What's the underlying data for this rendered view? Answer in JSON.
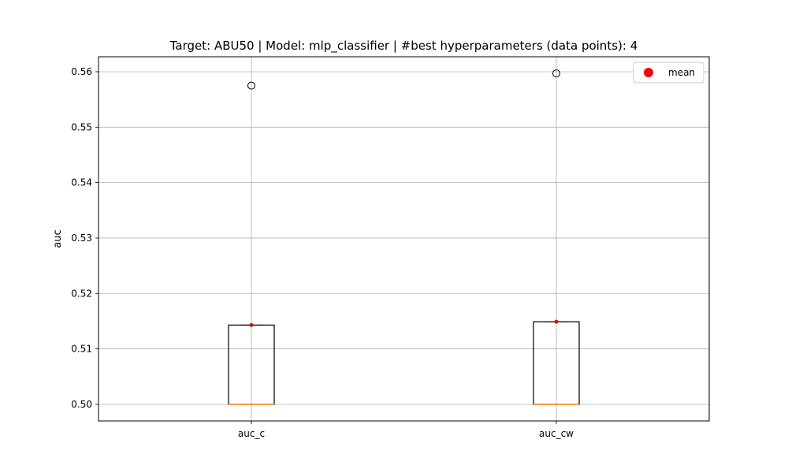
{
  "chart_data": {
    "type": "box",
    "title": "Target: ABU50 | Model: mlp_classifier | #best hyperparameters (data points): 4",
    "xlabel": "",
    "ylabel": "auc",
    "ylim": [
      0.497,
      0.5627
    ],
    "yticks": [
      0.5,
      0.51,
      0.52,
      0.53,
      0.54,
      0.55,
      0.56
    ],
    "ytick_labels": [
      "0.50",
      "0.51",
      "0.52",
      "0.53",
      "0.54",
      "0.55",
      "0.56"
    ],
    "grid": true,
    "legend": {
      "placement": "top-right",
      "entries": [
        {
          "label": "mean",
          "color": "#ff0000",
          "marker": "circle"
        }
      ]
    },
    "colors": {
      "box": "#000000",
      "median": "#ff7f0e",
      "mean": "#ff0000",
      "grid": "#b0b0b0"
    },
    "categories": [
      "auc_c",
      "auc_cw"
    ],
    "boxes": [
      {
        "name": "auc_c",
        "whisker_low": 0.5,
        "q1": 0.5,
        "median": 0.5,
        "q3": 0.5143,
        "whisker_high": 0.5143,
        "mean": 0.5143,
        "outliers": [
          0.5575
        ]
      },
      {
        "name": "auc_cw",
        "whisker_low": 0.5,
        "q1": 0.5,
        "median": 0.5,
        "q3": 0.5149,
        "whisker_high": 0.5149,
        "mean": 0.5149,
        "outliers": [
          0.5597
        ]
      }
    ]
  }
}
